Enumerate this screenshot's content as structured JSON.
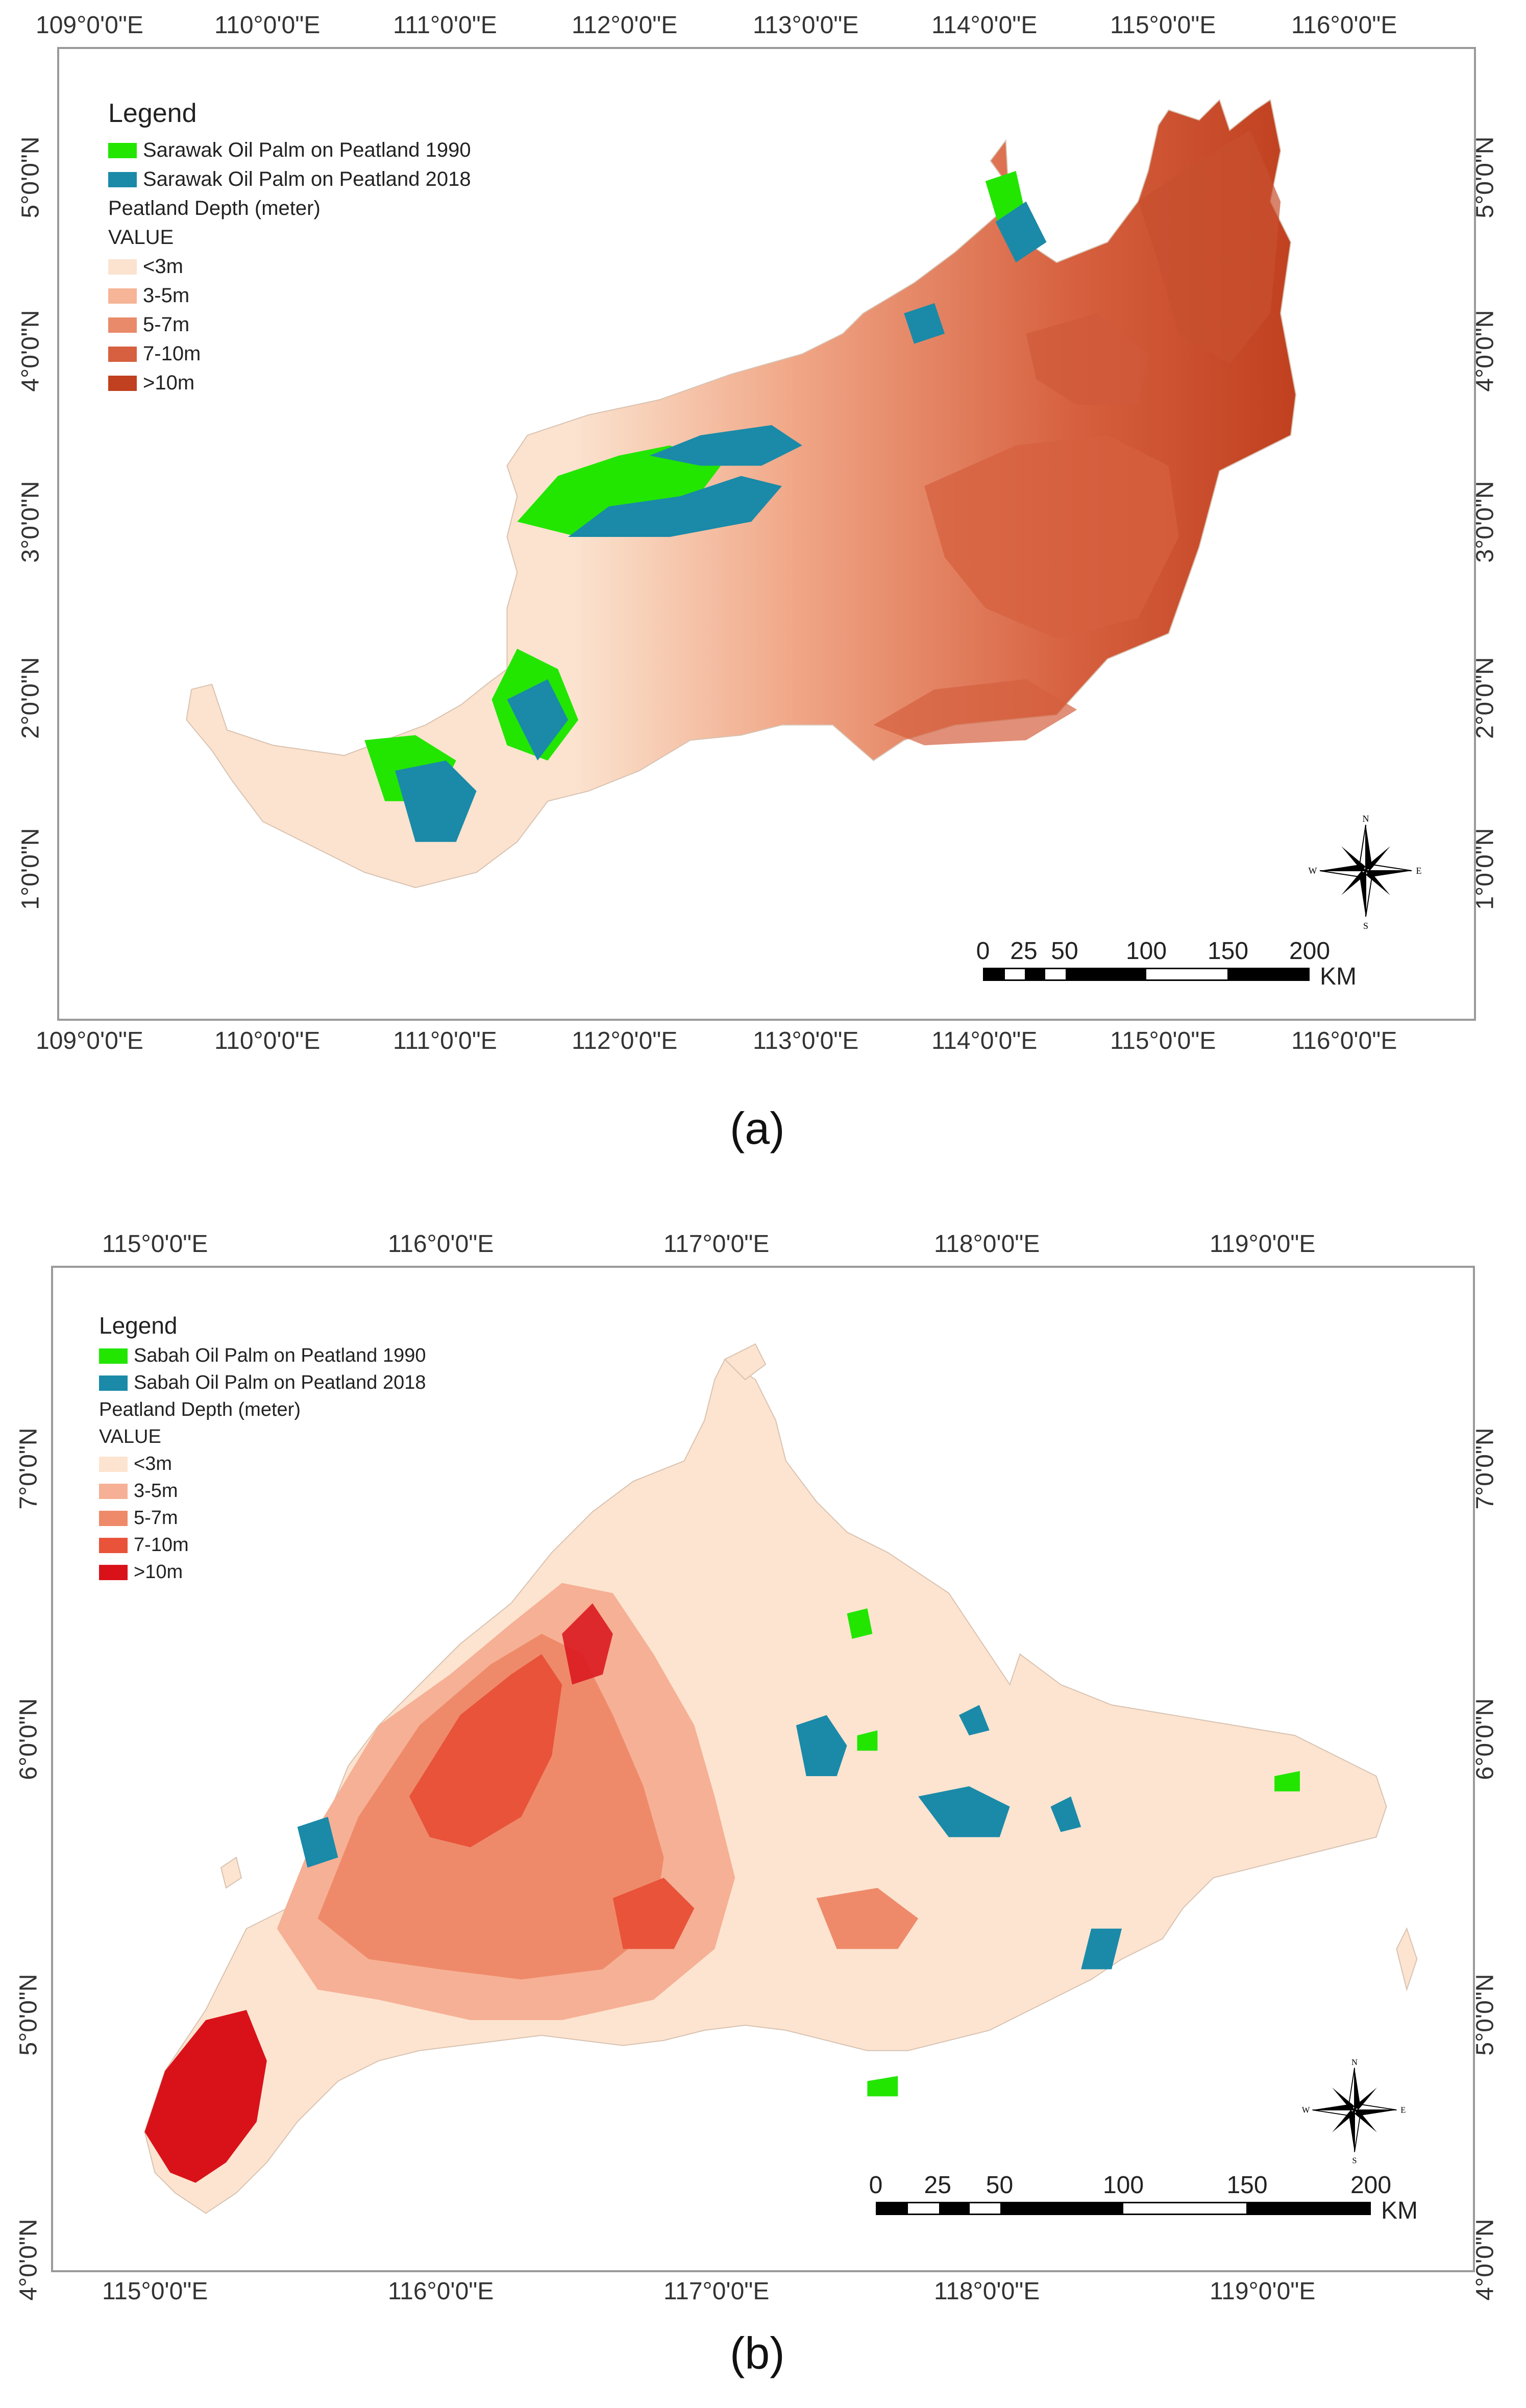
{
  "panels": {
    "a": {
      "caption": "(a)",
      "lon_ticks": [
        "109°0'0\"E",
        "110°0'0\"E",
        "111°0'0\"E",
        "112°0'0\"E",
        "113°0'0\"E",
        "114°0'0\"E",
        "115°0'0\"E",
        "116°0'0\"E"
      ],
      "lat_ticks": [
        "5°0'0\"N",
        "4°0'0\"N",
        "3°0'0\"N",
        "2°0'0\"N",
        "1°0'0\"N"
      ],
      "legend": {
        "title": "Legend",
        "oil_palm_1990": "Sarawak Oil Palm on Peatland 1990",
        "oil_palm_2018": "Sarawak Oil Palm on Peatland 2018",
        "depth_title": "Peatland Depth (meter)",
        "value_label": "VALUE",
        "classes": [
          "<3m",
          "3-5m",
          "5-7m",
          "7-10m",
          ">10m"
        ]
      },
      "colors": {
        "oil_palm_1990": "#22e600",
        "oil_palm_2018": "#1a8aa8",
        "classes": [
          "#fbe3cf",
          "#f5b596",
          "#e98a6a",
          "#d6603f",
          "#c0401f"
        ]
      },
      "scale": {
        "labels": [
          "0",
          "25",
          "50",
          "100",
          "150",
          "200"
        ],
        "unit": "KM"
      }
    },
    "b": {
      "caption": "(b)",
      "lon_ticks": [
        "115°0'0\"E",
        "116°0'0\"E",
        "117°0'0\"E",
        "118°0'0\"E",
        "119°0'0\"E"
      ],
      "lat_ticks": [
        "7°0'0\"N",
        "6°0'0\"N",
        "5°0'0\"N",
        "4°0'0\"N"
      ],
      "legend": {
        "title": "Legend",
        "oil_palm_1990": "Sabah Oil Palm on Peatland 1990",
        "oil_palm_2018": "Sabah Oil Palm on Peatland 2018",
        "depth_title": "Peatland Depth (meter)",
        "value_label": "VALUE",
        "classes": [
          "<3m",
          "3-5m",
          "5-7m",
          "7-10m",
          ">10m"
        ]
      },
      "colors": {
        "oil_palm_1990": "#22e600",
        "oil_palm_2018": "#1a8aa8",
        "classes": [
          "#fde4d0",
          "#f6b095",
          "#ee8a6a",
          "#e8533a",
          "#d9121a"
        ]
      },
      "scale": {
        "labels": [
          "0",
          "25",
          "50",
          "100",
          "150",
          "200"
        ],
        "unit": "KM"
      }
    }
  },
  "compass": {
    "n": "N",
    "s": "S",
    "e": "E",
    "w": "W"
  }
}
